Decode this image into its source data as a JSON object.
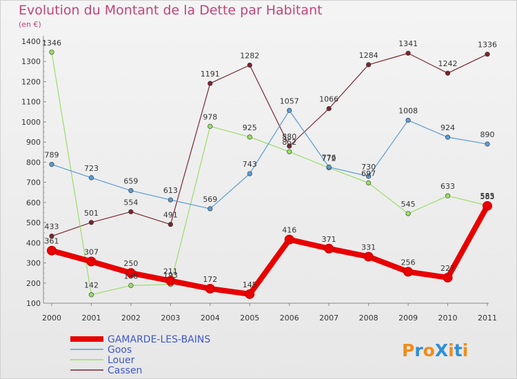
{
  "title": "Evolution du Montant de la Dette par Habitant",
  "unit_label": "(en €)",
  "logo_text": "ProXiti",
  "chart_data": {
    "type": "line",
    "title": "Evolution du Montant de la Dette par Habitant",
    "subtitle": "(en €)",
    "x": [
      "2000",
      "2001",
      "2002",
      "2003",
      "2004",
      "2005",
      "2006",
      "2007",
      "2008",
      "2009",
      "2010",
      "2011"
    ],
    "y_ticks": [
      "100",
      "200",
      "300",
      "400",
      "500",
      "600",
      "700",
      "800",
      "900",
      "1000",
      "1100",
      "1200",
      "1300",
      "1400"
    ],
    "ylim": [
      100,
      1400
    ],
    "grid": false,
    "legend_position": "bottom-left",
    "series": [
      {
        "name": "GAMARDE-LES-BAINS",
        "color": "#e80000",
        "values": [
          361,
          307,
          250,
          211,
          172,
          145,
          416,
          371,
          331,
          256,
          227,
          583
        ],
        "labels": [
          "361",
          "307",
          "250",
          "211",
          "172",
          "145",
          "416",
          "371",
          "331",
          "256",
          "227",
          "583"
        ]
      },
      {
        "name": "Goos",
        "color": "#5a9ad2",
        "values": [
          789,
          723,
          659,
          613,
          569,
          743,
          1057,
          776,
          730,
          1008,
          924,
          890
        ],
        "labels": [
          "789",
          "723",
          "659",
          "613",
          "569",
          "743",
          "1057",
          "776",
          "730",
          "1008",
          "924",
          "890"
        ]
      },
      {
        "name": "Louer",
        "color": "#99dd66",
        "values": [
          1346,
          142,
          188,
          193,
          978,
          925,
          852,
          772,
          697,
          545,
          633,
          585
        ],
        "labels": [
          "1346",
          "142",
          "188",
          "193",
          "978",
          "925",
          "852",
          "772",
          "697",
          "545",
          "633",
          "585"
        ]
      },
      {
        "name": "Cassen",
        "color": "#7b2530",
        "values": [
          433,
          501,
          554,
          491,
          1191,
          1282,
          880,
          1066,
          1284,
          1341,
          1242,
          1336
        ],
        "labels": [
          "433",
          "501",
          "554",
          "491",
          "1191",
          "1282",
          "880",
          "1066",
          "1284",
          "1341",
          "1242",
          "1336"
        ]
      }
    ]
  }
}
